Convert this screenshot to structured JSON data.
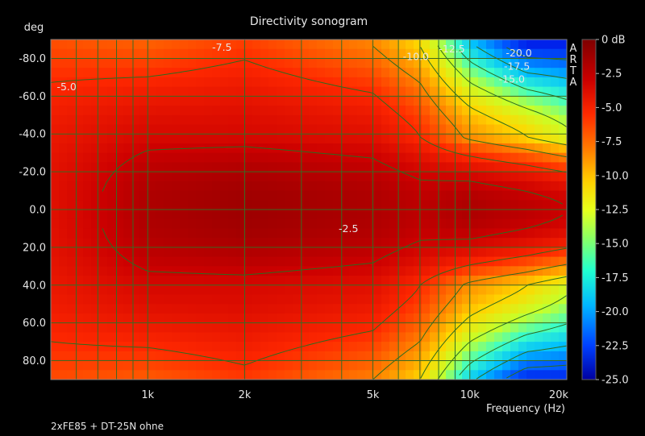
{
  "chart_data": {
    "type": "heatmap",
    "title": "Directivity sonogram",
    "ylabel": "deg",
    "xlabel": "Frequency (Hz)",
    "footnote": "2xFE85 + DT-25N ohne",
    "watermark": "ARTA",
    "x_scale": "log",
    "xlim": [
      500,
      20000
    ],
    "ylim": [
      -90,
      90
    ],
    "x_ticks": [
      {
        "value": 1000,
        "label": "1k"
      },
      {
        "value": 2000,
        "label": "2k"
      },
      {
        "value": 5000,
        "label": "5k"
      },
      {
        "value": 10000,
        "label": "10k"
      },
      {
        "value": 20000,
        "label": "20k"
      }
    ],
    "y_ticks": [
      {
        "value": -80,
        "label": "-80.0"
      },
      {
        "value": -60,
        "label": "-60.0"
      },
      {
        "value": -40,
        "label": "-40.0"
      },
      {
        "value": -20,
        "label": "-20.0"
      },
      {
        "value": 0,
        "label": "0.0"
      },
      {
        "value": 20,
        "label": "20.0"
      },
      {
        "value": 40,
        "label": "40.0"
      },
      {
        "value": 60,
        "label": "60.0"
      },
      {
        "value": 80,
        "label": "80.0"
      }
    ],
    "colorbar": {
      "unit": "dB",
      "range": [
        -25,
        0
      ],
      "ticks": [
        "0 dB",
        "-2.5",
        "-5.0",
        "-7.5",
        "-10.0",
        "-12.5",
        "-15.0",
        "-17.5",
        "-20.0",
        "-22.5",
        "-25.0"
      ]
    },
    "contour_labels": [
      {
        "text": "-5.0",
        "freq": 560,
        "deg": -65
      },
      {
        "text": "-7.5",
        "freq": 1700,
        "deg": -86
      },
      {
        "text": "-10.0",
        "freq": 6800,
        "deg": -81
      },
      {
        "text": "-12.5",
        "freq": 8800,
        "deg": -85
      },
      {
        "text": "-20.0",
        "freq": 14200,
        "deg": -83
      },
      {
        "text": "-17.5",
        "freq": 14000,
        "deg": -76
      },
      {
        "text": "-15.0",
        "freq": 13500,
        "deg": -69
      },
      {
        "text": "-2.5",
        "freq": 4200,
        "deg": 10
      }
    ],
    "contour_levels": [
      -2.5,
      -5.0,
      -7.5,
      -10.0,
      -12.5,
      -15.0,
      -17.5,
      -20.0
    ],
    "approx_levels_db": {
      "frequencies_hz": [
        500,
        1000,
        2000,
        5000,
        7000,
        10000,
        15000,
        20000
      ],
      "on_axis_0deg": [
        -3.5,
        -1.5,
        -1.0,
        -1.5,
        -2.0,
        -1.5,
        -2.0,
        -2.5
      ],
      "at_40deg": [
        -4.0,
        -3.0,
        -3.0,
        -3.5,
        -5.0,
        -8.0,
        -10.0,
        -12.0
      ],
      "at_90deg": [
        -6.0,
        -6.5,
        -5.5,
        -7.5,
        -10.0,
        -17.0,
        -22.0,
        -22.0
      ]
    }
  }
}
